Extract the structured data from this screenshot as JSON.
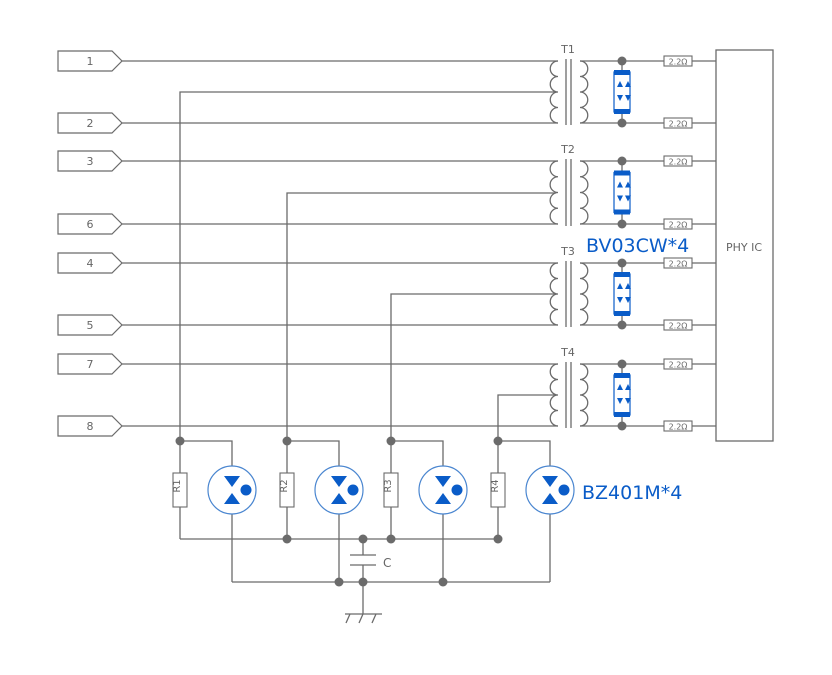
{
  "connectors": [
    "1",
    "2",
    "3",
    "6",
    "4",
    "5",
    "7",
    "8"
  ],
  "transformers": [
    "T1",
    "T2",
    "T3",
    "T4"
  ],
  "series_resistor_label": "2.2Ω",
  "ic_label": "PHY IC",
  "tvs_label": "BV03CW*4",
  "gdt_label": "BZ401M*4",
  "resistors": [
    "R1",
    "R2",
    "R3",
    "R4"
  ],
  "capacitor_label": "C",
  "colors": {
    "wire": "#6b6b6b",
    "accent": "#0a5cc8",
    "node": "#6b6b6b"
  }
}
